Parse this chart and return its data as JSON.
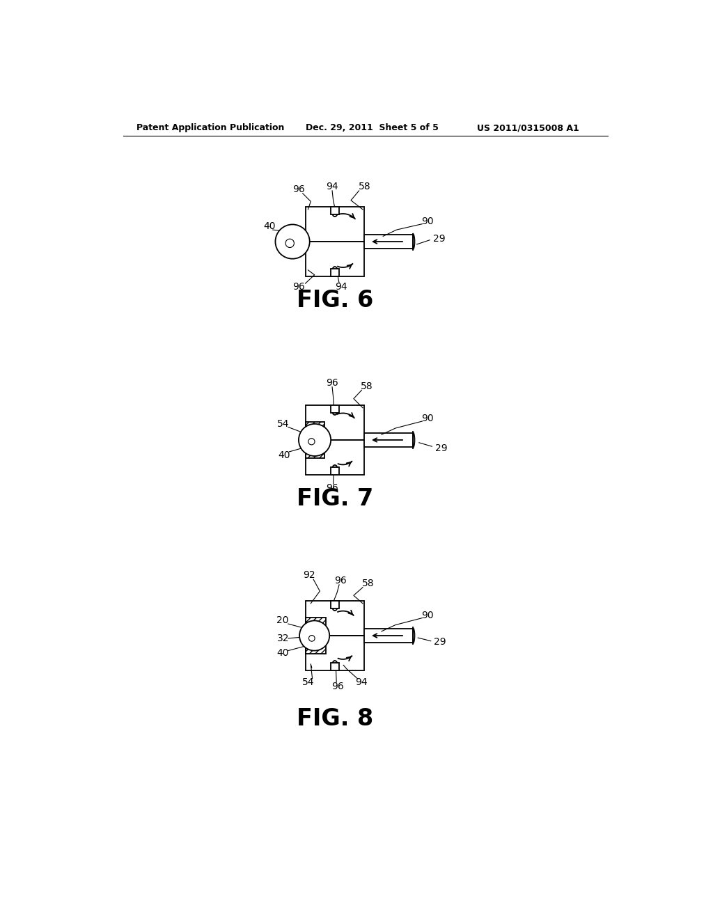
{
  "background_color": "#ffffff",
  "header_left": "Patent Application Publication",
  "header_center": "Dec. 29, 2011  Sheet 5 of 5",
  "header_right": "US 2011/0315008 A1",
  "fig6_label": "FIG. 6",
  "fig7_label": "FIG. 7",
  "fig8_label": "FIG. 8",
  "text_color": "#000000",
  "line_color": "#000000"
}
